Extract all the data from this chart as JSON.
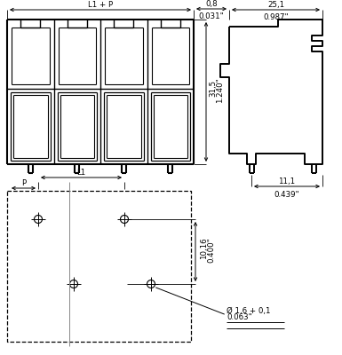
{
  "bg_color": "#ffffff",
  "lc": "#000000",
  "fig_w": 3.85,
  "fig_h": 4.0,
  "dpi": 100,
  "fs": 6.2,
  "fs_rot": 6.2,
  "annotations": {
    "L1_P": "L1 + P",
    "dim_08_a": "0,8",
    "dim_08_b": "0.031\"",
    "dim_251_a": "25,1",
    "dim_251_b": "0.987\"",
    "dim_315_a": "31,5",
    "dim_315_b": "1.240\"",
    "dim_111_a": "11,1",
    "dim_111_b": "0.439\"",
    "dim_L1": "L1",
    "dim_P": "P",
    "dim_1016_a": "10,16",
    "dim_1016_b": "0.400\"",
    "dim_hole_a": "Ø 1,6 + 0,1",
    "dim_hole_b": "0.063\""
  }
}
